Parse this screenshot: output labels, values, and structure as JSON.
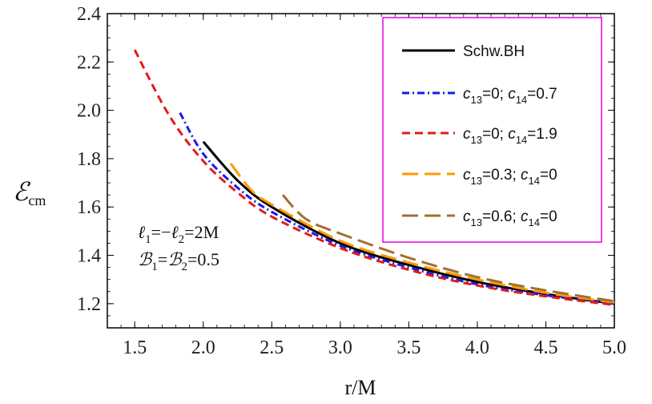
{
  "chart_data": {
    "type": "line",
    "xlabel": "r/M",
    "ylabel": {
      "main": "ℰ",
      "sub": "cm"
    },
    "xlim": [
      1.3,
      5.0
    ],
    "ylim": [
      1.1,
      2.4
    ],
    "xticks": [
      "1.5",
      "2.0",
      "2.5",
      "3.0",
      "3.5",
      "4.0",
      "4.5",
      "5.0"
    ],
    "xtick_values": [
      1.5,
      2.0,
      2.5,
      3.0,
      3.5,
      4.0,
      4.5,
      5.0
    ],
    "yticks": [
      "1.2",
      "1.4",
      "1.6",
      "1.8",
      "2.0",
      "2.2",
      "2.4"
    ],
    "ytick_values": [
      1.2,
      1.4,
      1.6,
      1.8,
      2.0,
      2.2,
      2.4
    ],
    "grid": false,
    "legend_position": "top-right",
    "legend_border_color": "#e600e6",
    "series": [
      {
        "name": "Schw.BH",
        "legend_parts": [
          {
            "t": "Schw.BH"
          }
        ],
        "color": "#000000",
        "dash": "solid",
        "x": [
          2.0,
          2.25,
          2.5,
          3.0,
          3.5,
          4.0,
          4.5,
          5.0
        ],
        "y": [
          1.87,
          1.71,
          1.6,
          1.45,
          1.36,
          1.29,
          1.24,
          1.2
        ]
      },
      {
        "name": "c13=0; c14=0.7",
        "legend_parts": [
          {
            "t": "c",
            "i": true
          },
          {
            "t": "13",
            "sub": true
          },
          {
            "t": "=0; "
          },
          {
            "t": "c",
            "i": true
          },
          {
            "t": "14",
            "sub": true
          },
          {
            "t": "=0.7"
          }
        ],
        "color": "#1a1ae6",
        "dash": "dashdot",
        "x": [
          1.83,
          2.0,
          2.25,
          2.5,
          3.0,
          3.5,
          4.0,
          4.5,
          5.0
        ],
        "y": [
          1.99,
          1.82,
          1.68,
          1.58,
          1.44,
          1.35,
          1.28,
          1.235,
          1.2
        ]
      },
      {
        "name": "c13=0; c14=1.9",
        "legend_parts": [
          {
            "t": "c",
            "i": true
          },
          {
            "t": "13",
            "sub": true
          },
          {
            "t": "=0; "
          },
          {
            "t": "c",
            "i": true
          },
          {
            "t": "14",
            "sub": true
          },
          {
            "t": "=1.9"
          }
        ],
        "color": "#e61a1a",
        "dash": "dashed",
        "x": [
          1.5,
          1.75,
          2.0,
          2.25,
          2.5,
          3.0,
          3.5,
          4.0,
          4.5,
          5.0
        ],
        "y": [
          2.25,
          1.98,
          1.79,
          1.66,
          1.56,
          1.43,
          1.34,
          1.275,
          1.23,
          1.195
        ]
      },
      {
        "name": "c13=0.3; c14=0",
        "legend_parts": [
          {
            "t": "c",
            "i": true
          },
          {
            "t": "13",
            "sub": true
          },
          {
            "t": "=0.3; "
          },
          {
            "t": "c",
            "i": true
          },
          {
            "t": "14",
            "sub": true
          },
          {
            "t": "=0"
          }
        ],
        "color": "#ff9900",
        "dash": "longdash",
        "x": [
          2.2,
          2.35,
          2.5,
          3.0,
          3.5,
          4.0,
          4.5,
          5.0
        ],
        "y": [
          1.78,
          1.67,
          1.61,
          1.46,
          1.37,
          1.3,
          1.245,
          1.205
        ]
      },
      {
        "name": "c13=0.6; c14=0",
        "legend_parts": [
          {
            "t": "c",
            "i": true
          },
          {
            "t": "13",
            "sub": true
          },
          {
            "t": "=0.6; "
          },
          {
            "t": "c",
            "i": true
          },
          {
            "t": "14",
            "sub": true
          },
          {
            "t": "=0"
          }
        ],
        "color": "#a07030",
        "dash": "longdash",
        "x": [
          2.58,
          2.75,
          3.0,
          3.5,
          4.0,
          4.5,
          5.0
        ],
        "y": [
          1.65,
          1.55,
          1.49,
          1.39,
          1.31,
          1.255,
          1.21
        ]
      }
    ],
    "annotations": [
      {
        "name": "ell-annotation",
        "parts": [
          {
            "t": "ℓ",
            "i": true
          },
          {
            "t": "1",
            "sub": true
          },
          {
            "t": "=−"
          },
          {
            "t": "ℓ",
            "i": true
          },
          {
            "t": "2",
            "sub": true
          },
          {
            "t": "=2M"
          }
        ]
      },
      {
        "name": "b-annotation",
        "parts": [
          {
            "t": "ℬ",
            "i": true
          },
          {
            "t": "1",
            "sub": true
          },
          {
            "t": "="
          },
          {
            "t": "ℬ",
            "i": true
          },
          {
            "t": "2",
            "sub": true
          },
          {
            "t": "=0.5"
          }
        ]
      }
    ]
  }
}
